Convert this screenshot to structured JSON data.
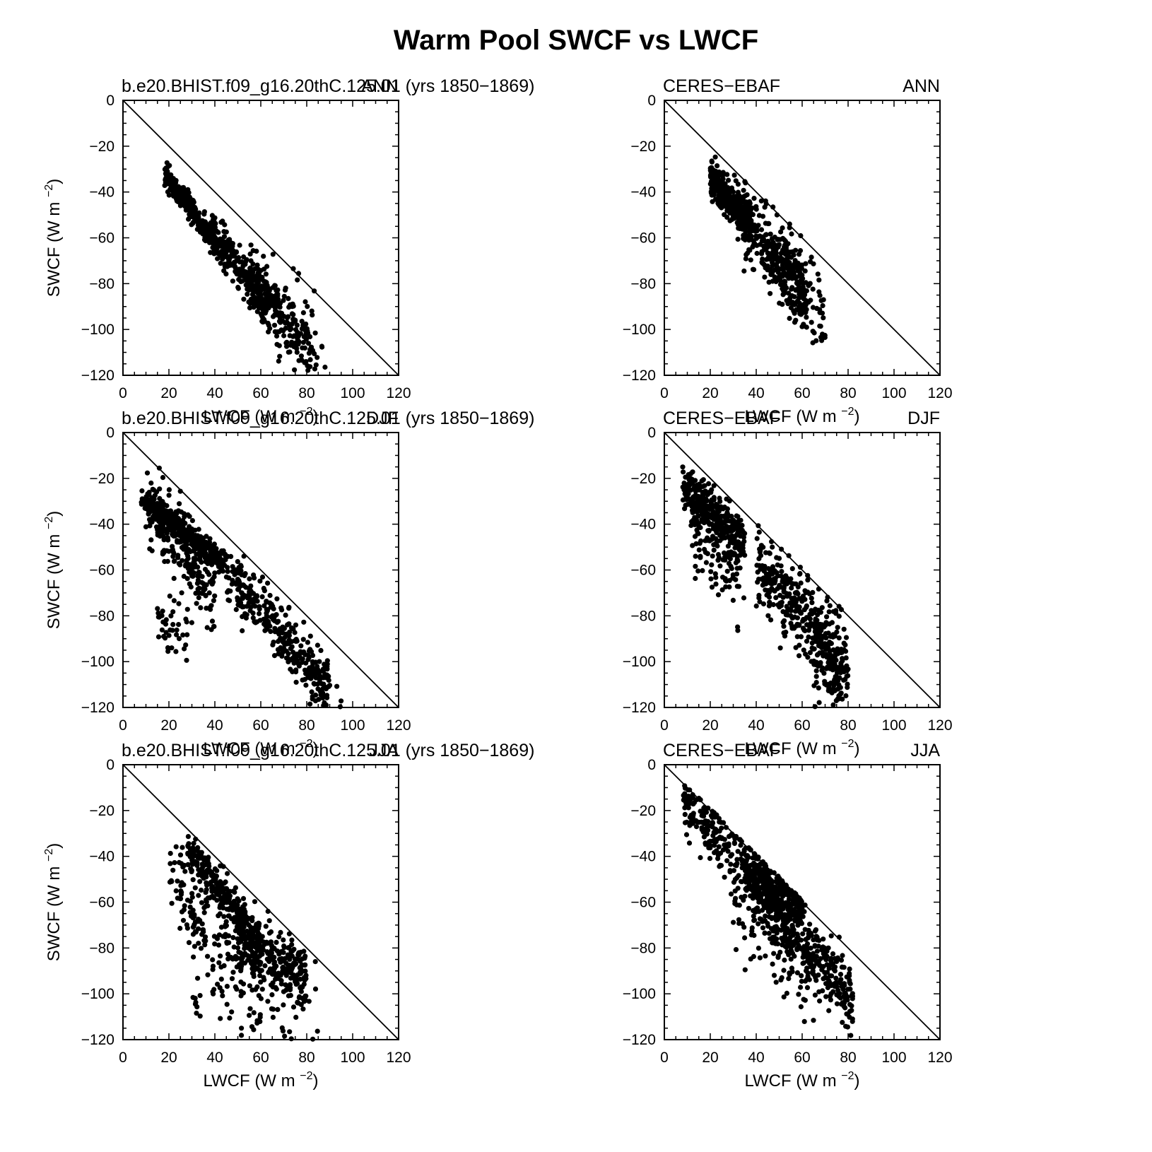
{
  "figure": {
    "title": "Warm Pool SWCF vs LWCF",
    "xlabel": "LWCF (W m",
    "ylabel": "SWCF (W m",
    "unit_exponent": "−2",
    "unit_close": ")",
    "ticks": {
      "x": [
        "0",
        "20",
        "40",
        "60",
        "80",
        "100",
        "120"
      ],
      "y": [
        "0",
        "−20",
        "−40",
        "−60",
        "−80",
        "−100",
        "−120"
      ]
    }
  },
  "chart_data": [
    {
      "type": "scatter",
      "left_label": "b.e20.BHIST.f09_g16.20thC.125.01 (yrs 1850−1869)",
      "right_label": "ANN",
      "xlabel": "LWCF (W m⁻²)",
      "ylabel": "SWCF (W m⁻²)",
      "xlim": [
        0,
        120
      ],
      "ylim": [
        -120,
        0
      ],
      "reference_line": "y = -x",
      "clusters": [
        {
          "n": 320,
          "x": [
            18,
            40
          ],
          "k": -1.3,
          "b": -9,
          "spread": 2.5
        },
        {
          "n": 260,
          "x": [
            38,
            62
          ],
          "k": -1.35,
          "b": -5,
          "spread": 5
        },
        {
          "n": 200,
          "x": [
            55,
            82
          ],
          "k": -1.25,
          "b": -8,
          "spread": 7
        },
        {
          "n": 55,
          "x": [
            60,
            88
          ],
          "k": -1.2,
          "b": -10,
          "spread": 13
        }
      ]
    },
    {
      "type": "scatter",
      "left_label": "CERES−EBAF",
      "right_label": "ANN",
      "xlabel": "LWCF (W m⁻²)",
      "ylabel": "SWCF (W m⁻²)",
      "xlim": [
        0,
        120
      ],
      "ylim": [
        -120,
        0
      ],
      "reference_line": "y = -x",
      "clusters": [
        {
          "n": 300,
          "x": [
            20,
            38
          ],
          "k": -1.1,
          "b": -12,
          "spread": 4
        },
        {
          "n": 330,
          "x": [
            32,
            62
          ],
          "k": -1.2,
          "b": -11,
          "spread": 8
        },
        {
          "n": 90,
          "x": [
            50,
            70
          ],
          "k": -1.3,
          "b": -5,
          "spread": 11
        }
      ]
    },
    {
      "type": "scatter",
      "left_label": "b.e20.BHIST.f09_g16.20thC.125.01 (yrs 1850−1869)",
      "right_label": "DJF",
      "xlabel": "LWCF (W m⁻²)",
      "ylabel": "SWCF (W m⁻²)",
      "xlim": [
        0,
        120
      ],
      "ylim": [
        -120,
        0
      ],
      "reference_line": "y = -x",
      "clusters": [
        {
          "n": 360,
          "x": [
            8,
            45
          ],
          "k": -0.8,
          "b": -22,
          "spread": 3
        },
        {
          "n": 230,
          "x": [
            10,
            40
          ],
          "k": -1.25,
          "b": -20,
          "spread": 9
        },
        {
          "n": 340,
          "x": [
            45,
            90
          ],
          "k": -1.15,
          "b": -8,
          "spread": 6
        },
        {
          "n": 40,
          "x": [
            15,
            30
          ],
          "k": -0.4,
          "b": -78,
          "spread": 7
        },
        {
          "n": 25,
          "x": [
            80,
            95
          ],
          "k": -0.9,
          "b": -32,
          "spread": 6
        }
      ]
    },
    {
      "type": "scatter",
      "left_label": "CERES−EBAF",
      "right_label": "DJF",
      "xlabel": "LWCF (W m⁻²)",
      "ylabel": "SWCF (W m⁻²)",
      "xlim": [
        0,
        120
      ],
      "ylim": [
        -120,
        0
      ],
      "reference_line": "y = -x",
      "clusters": [
        {
          "n": 320,
          "x": [
            8,
            35
          ],
          "k": -0.9,
          "b": -16,
          "spread": 5
        },
        {
          "n": 120,
          "x": [
            12,
            35
          ],
          "k": -1.0,
          "b": -28,
          "spread": 10
        },
        {
          "n": 360,
          "x": [
            40,
            80
          ],
          "k": -1.2,
          "b": -9,
          "spread": 9
        },
        {
          "n": 90,
          "x": [
            65,
            78
          ],
          "k": -1.4,
          "b": 0,
          "spread": 15
        }
      ]
    },
    {
      "type": "scatter",
      "left_label": "b.e20.BHIST.f09_g16.20thC.125.01 (yrs 1850−1869)",
      "right_label": "JJA",
      "xlabel": "LWCF (W m⁻²)",
      "ylabel": "SWCF (W m⁻²)",
      "xlim": [
        0,
        120
      ],
      "ylim": [
        -120,
        0
      ],
      "reference_line": "y = -x",
      "clusters": [
        {
          "n": 260,
          "x": [
            28,
            60
          ],
          "k": -1.3,
          "b": 0,
          "spread": 4
        },
        {
          "n": 260,
          "x": [
            50,
            80
          ],
          "k": -0.6,
          "b": -45,
          "spread": 7
        },
        {
          "n": 170,
          "x": [
            20,
            60
          ],
          "k": -1.1,
          "b": -25,
          "spread": 12
        },
        {
          "n": 110,
          "x": [
            30,
            85
          ],
          "k": -0.3,
          "b": -84,
          "spread": 13
        }
      ]
    },
    {
      "type": "scatter",
      "left_label": "CERES−EBAF",
      "right_label": "JJA",
      "xlabel": "LWCF (W m⁻²)",
      "ylabel": "SWCF (W m⁻²)",
      "xlim": [
        0,
        120
      ],
      "ylim": [
        -120,
        0
      ],
      "reference_line": "y = -x",
      "clusters": [
        {
          "n": 240,
          "x": [
            8,
            45
          ],
          "k": -1.0,
          "b": -8,
          "spread": 6
        },
        {
          "n": 300,
          "x": [
            35,
            60
          ],
          "k": -0.6,
          "b": -28,
          "spread": 6
        },
        {
          "n": 360,
          "x": [
            40,
            82
          ],
          "k": -1.15,
          "b": -9,
          "spread": 7
        },
        {
          "n": 100,
          "x": [
            30,
            65
          ],
          "k": -1.0,
          "b": -30,
          "spread": 13
        }
      ]
    }
  ]
}
